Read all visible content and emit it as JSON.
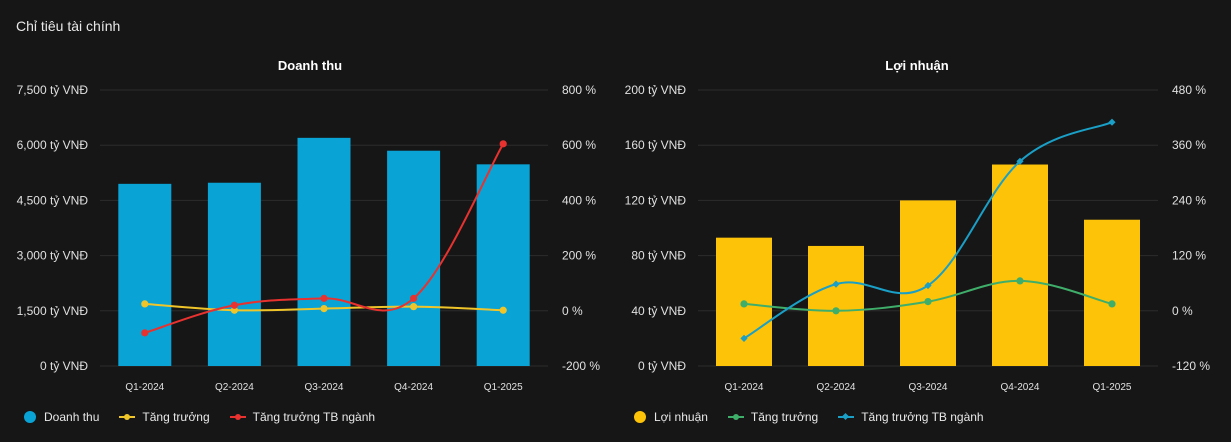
{
  "page_title": "Chỉ tiêu tài chính",
  "chart_data": [
    {
      "type": "bar",
      "title": "Doanh thu",
      "categories": [
        "Q1-2024",
        "Q2-2024",
        "Q3-2024",
        "Q4-2024",
        "Q1-2025"
      ],
      "y_left": {
        "min": 0,
        "max": 7500,
        "ticks": [
          0,
          1500,
          3000,
          4500,
          6000,
          7500
        ],
        "tick_labels": [
          "0 tỷ VNĐ",
          "1,500 tỷ VNĐ",
          "3,000 tỷ VNĐ",
          "4,500 tỷ VNĐ",
          "6,000 tỷ VNĐ",
          "7,500 tỷ VNĐ"
        ]
      },
      "y_right": {
        "min": -200,
        "max": 800,
        "ticks": [
          -200,
          0,
          200,
          400,
          600,
          800
        ],
        "tick_labels": [
          "-200 %",
          "0 %",
          "200 %",
          "400 %",
          "600 %",
          "800 %"
        ]
      },
      "grid": true,
      "legend_position": "bottom-left",
      "series": [
        {
          "name": "Doanh thu",
          "kind": "bar",
          "axis": "left",
          "color": "#0aa3d6",
          "values": [
            4950,
            4980,
            6200,
            5850,
            5480
          ]
        },
        {
          "name": "Tăng trưởng",
          "kind": "line",
          "axis": "right",
          "color": "#f0c52a",
          "marker": "circle",
          "values": [
            25,
            2,
            8,
            15,
            2
          ]
        },
        {
          "name": "Tăng trưởng TB ngành",
          "kind": "line",
          "axis": "right",
          "color": "#e8322f",
          "marker": "circle",
          "values": [
            -80,
            20,
            45,
            45,
            605
          ]
        }
      ]
    },
    {
      "type": "bar",
      "title": "Lợi nhuận",
      "categories": [
        "Q1-2024",
        "Q2-2024",
        "Q3-2024",
        "Q4-2024",
        "Q1-2025"
      ],
      "y_left": {
        "min": 0,
        "max": 200,
        "ticks": [
          0,
          40,
          80,
          120,
          160,
          200
        ],
        "tick_labels": [
          "0 tỷ VNĐ",
          "40 tỷ VNĐ",
          "80 tỷ VNĐ",
          "120 tỷ VNĐ",
          "160 tỷ VNĐ",
          "200 tỷ VNĐ"
        ]
      },
      "y_right": {
        "min": -120,
        "max": 480,
        "ticks": [
          -120,
          0,
          120,
          240,
          360,
          480
        ],
        "tick_labels": [
          "-120 %",
          "0 %",
          "120 %",
          "240 %",
          "360 %",
          "480 %"
        ]
      },
      "grid": true,
      "legend_position": "bottom-left",
      "series": [
        {
          "name": "Lợi nhuận",
          "kind": "bar",
          "axis": "left",
          "color": "#fdc308",
          "values": [
            93,
            87,
            120,
            146,
            106
          ]
        },
        {
          "name": "Tăng trưởng",
          "kind": "line",
          "axis": "right",
          "color": "#3fae6a",
          "marker": "circle",
          "values": [
            15,
            0,
            20,
            65,
            15
          ]
        },
        {
          "name": "Tăng trưởng TB ngành",
          "kind": "line",
          "axis": "right",
          "color": "#1a9fc7",
          "marker": "diamond",
          "values": [
            -60,
            58,
            55,
            325,
            410
          ]
        }
      ]
    }
  ]
}
